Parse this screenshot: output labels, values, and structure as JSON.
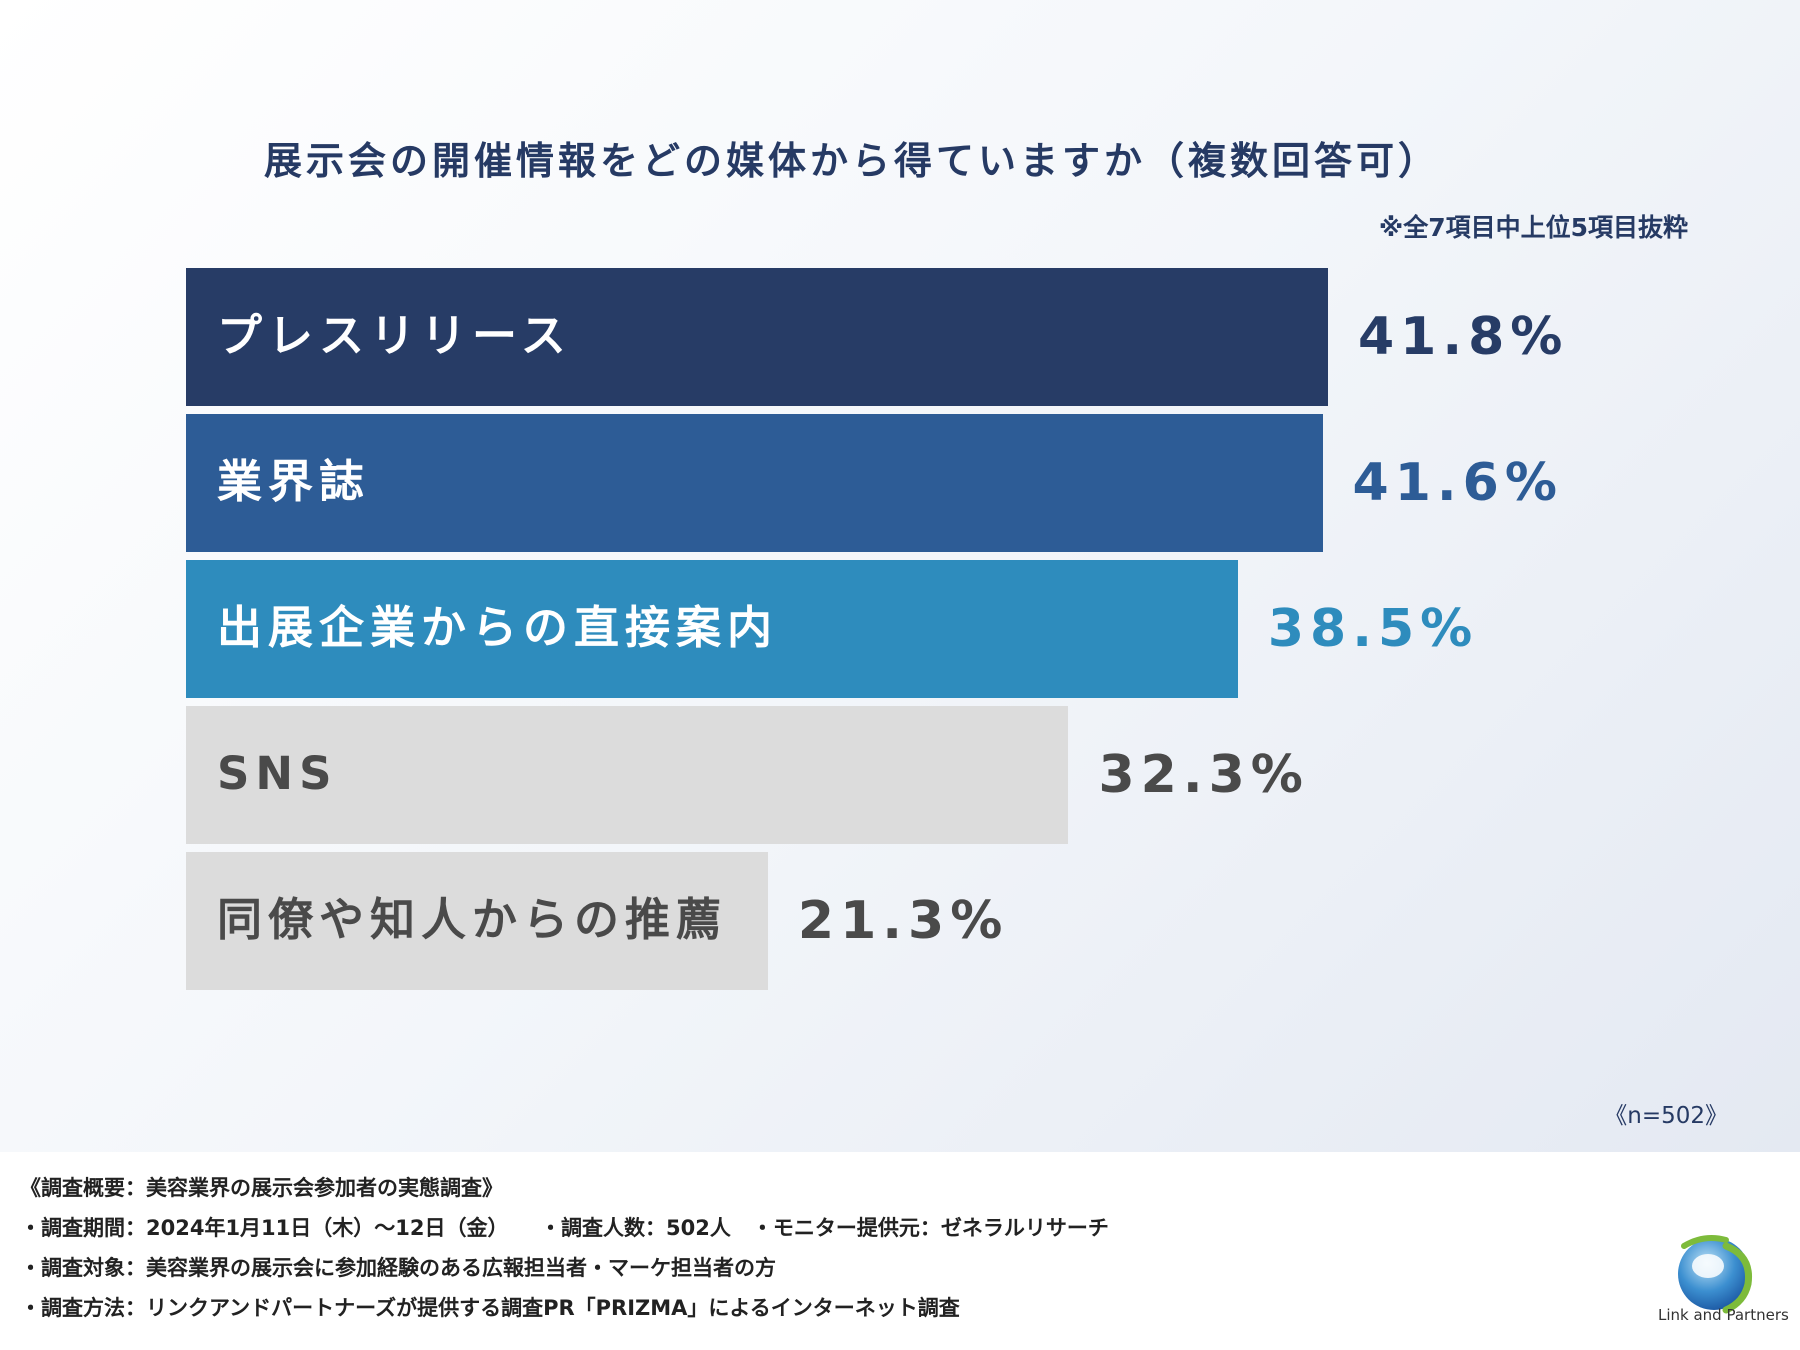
{
  "chart_data": {
    "type": "bar",
    "orientation": "horizontal",
    "title": "展示会の開催情報をどの媒体から得ていますか（複数回答可）",
    "note": "※全7項目中上位5項目抜粋",
    "categories": [
      "プレスリリース",
      "業界誌",
      "出展企業からの直接案内",
      "SNS",
      "同僚や知人からの推薦"
    ],
    "values": [
      41.8,
      41.6,
      38.5,
      32.3,
      21.3
    ],
    "value_labels": [
      "41.8%",
      "41.6%",
      "38.5%",
      "32.3%",
      "21.3%"
    ],
    "bar_colors": [
      "#273c66",
      "#2d5c96",
      "#2e8cbd",
      "#dcdcdc",
      "#dcdcdc"
    ],
    "label_colors": [
      "#ffffff",
      "#ffffff",
      "#ffffff",
      "#4a4a4a",
      "#4a4a4a"
    ],
    "value_colors": [
      "#273c66",
      "#2d5c96",
      "#2e8cbd",
      "#4a4a4a",
      "#4a4a4a"
    ],
    "sample_size": "《n=502》"
  },
  "survey": {
    "lines": [
      "《調査概要：美容業界の展示会参加者の実態調査》",
      "・調査期間：2024年1月11日（木）〜12日（金）　　・調査人数：502人　・モニター提供元：ゼネラルリサーチ",
      "・調査対象：美容業界の展示会に参加経験のある広報担当者・マーケ担当者の方",
      "・調査方法：リンクアンドパートナーズが提供する調査PR「PRIZMA」によるインターネット調査"
    ]
  },
  "logo": {
    "text": "Link and Partners"
  }
}
